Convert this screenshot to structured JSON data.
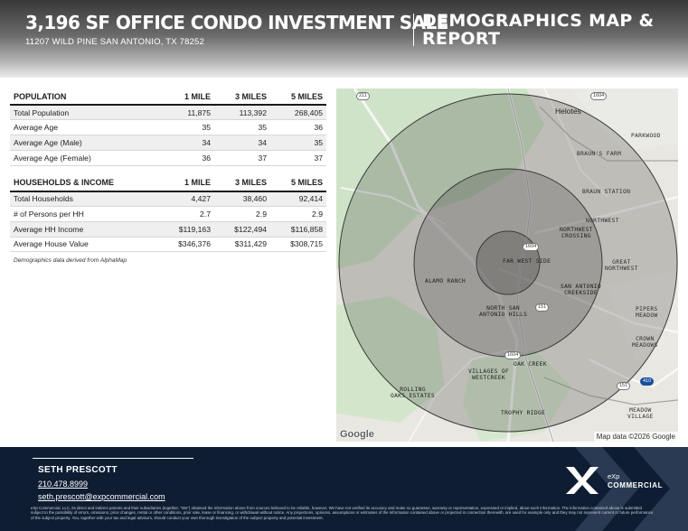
{
  "header": {
    "title": "3,196 SF OFFICE CONDO INVESTMENT SALE",
    "address": "11207 WILD PINE SAN ANTONIO, TX 78252",
    "section_title": "DEMOGRAPHICS MAP & REPORT"
  },
  "population": {
    "columns": [
      "POPULATION",
      "1 MILE",
      "3 MILES",
      "5 MILES"
    ],
    "rows": [
      [
        "Total Population",
        "11,875",
        "113,392",
        "268,405"
      ],
      [
        "Average Age",
        "35",
        "35",
        "36"
      ],
      [
        "Average Age (Male)",
        "34",
        "34",
        "35"
      ],
      [
        "Average Age (Female)",
        "36",
        "37",
        "37"
      ]
    ]
  },
  "households": {
    "columns": [
      "HOUSEHOLDS & INCOME",
      "1 MILE",
      "3 MILES",
      "5 MILES"
    ],
    "rows": [
      [
        "Total Households",
        "4,427",
        "38,460",
        "92,414"
      ],
      [
        "# of Persons per HH",
        "2.7",
        "2.9",
        "2.9"
      ],
      [
        "Average HH Income",
        "$119,163",
        "$122,494",
        "$116,858"
      ],
      [
        "Average House Value",
        "$346,376",
        "$311,429",
        "$308,715"
      ]
    ]
  },
  "footnote": "Demographics data derived from AlphaMap",
  "map": {
    "labels": {
      "helotes": "Helotes",
      "parkwood": "PARKWOOD",
      "brauns_farm": "BRAUN'S FARM",
      "braun_station": "BRAUN STATION",
      "northwest": "NORTHWEST",
      "northwest_crossing": "NORTHWEST\nCROSSING",
      "great_northwest": "GREAT\nNORTHWEST",
      "far_west_side": "FAR WEST SIDE",
      "alamo_ranch": "ALAMO RANCH",
      "san_antonio_creekside": "SAN ANTONIO\nCREEKSIDE",
      "north_san_antonio_hills": "NORTH SAN\nANTONIO HILLS",
      "pipers_meadow": "PIPERS\nMEADOW",
      "crown_meadows": "CROWN\nMEADOWS",
      "oak_creek": "OAK CREEK",
      "villages_of_westcreek": "VILLAGES OF\nWESTCREEK",
      "rolling_oaks_estates": "ROLLING\nOAKS ESTATES",
      "trophy_ridge": "TROPHY RIDGE",
      "meadow_village": "MEADOW\nVILLAGE"
    },
    "shields": {
      "s211": "211",
      "s1604_top": "1604",
      "s1604_center": "1604",
      "s151_center": "151",
      "s1604_bottom": "1604",
      "s151_right": "151",
      "s410": "410"
    },
    "google": "Google",
    "attribution": "Map data ©2026 Google"
  },
  "footer": {
    "name": "SETH PRESCOTT",
    "phone": "210.478.8999",
    "email": "seth.prescott@expcommercial.com",
    "brand_line1": "eXp",
    "brand_line2": "COMMERCIAL",
    "disclaimer": "eXp Commercial, LLC, its direct and indirect parents and their subsidiaries (together, \"We\") obtained the information above from sources believed to be reliable, however, We have not verified its accuracy and make no guarantee, warranty or representation, expressed or implied, about such information. The information contained above is submitted subject to the possibility of errors, omissions, price changes, rental or other conditions, prior sale, lease or financing, or withdrawal without notice. Any projections, opinions, assumptions or estimates of the information contained above or projected in connection therewith, are used for example only and they may not represent current or future performance of the subject property. You, together with your tax and legal advisors, should conduct your own thorough investigation of the subject property and potential investment."
  },
  "colors": {
    "footer_bg": "#0f1d33",
    "ring_fill": "rgba(40,40,40,0.22)"
  }
}
